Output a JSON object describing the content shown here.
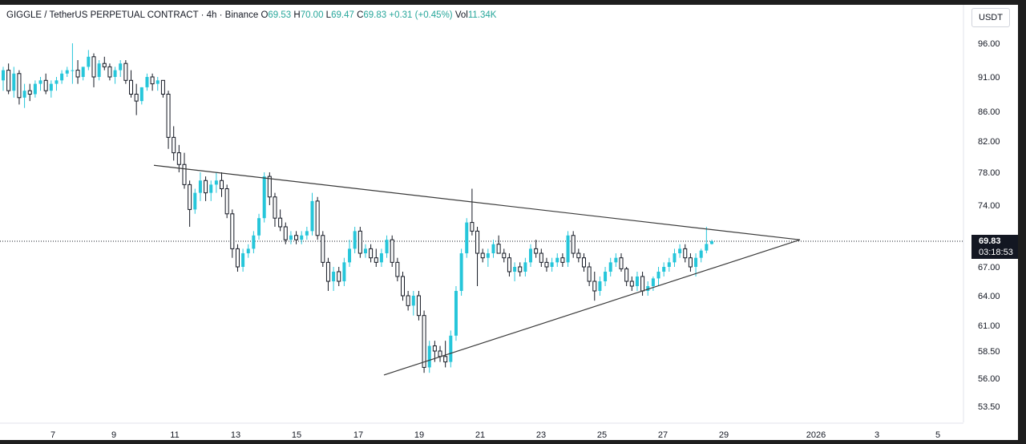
{
  "legend": {
    "symbol": "GIGGLE / TetherUS PERPETUAL CONTRACT · 4h · Binance",
    "o_label": "O",
    "o_value": "69.53",
    "h_label": "H",
    "h_value": "70.00",
    "l_label": "L",
    "l_value": "69.47",
    "c_label": "C",
    "c_value": "69.83",
    "change": "+0.31 (+0.45%)",
    "vol_label": "Vol",
    "vol_value": "11.34K"
  },
  "currency_label": "USDT",
  "current_price": {
    "price": "69.83",
    "countdown": "03:18:53"
  },
  "colors": {
    "up": "#26c6da",
    "down": "#ffffff",
    "down_outline": "#131722",
    "trendline": "#3a3a3a",
    "price_line": "#131722"
  },
  "chart_data": {
    "type": "candlestick",
    "y_ticks": [
      "96.00",
      "91.00",
      "86.00",
      "82.00",
      "78.00",
      "74.00",
      "67.00",
      "64.00",
      "61.00",
      "58.50",
      "56.00",
      "53.50"
    ],
    "x_ticks": [
      "7",
      "9",
      "11",
      "13",
      "15",
      "17",
      "19",
      "21",
      "23",
      "25",
      "27",
      "29",
      "2026",
      "3",
      "5"
    ],
    "current_price": 69.83,
    "trendlines": [
      {
        "name": "upper",
        "from": [
          "Dec 10",
          78.9
        ],
        "to": [
          "Dec 31",
          70.0
        ]
      },
      {
        "name": "lower",
        "from": [
          "Dec 18",
          56.3
        ],
        "to": [
          "Dec 31",
          70.0
        ]
      }
    ],
    "candles": [
      [
        90.5,
        92.5,
        89.0,
        92.0
      ],
      [
        92.0,
        93.0,
        88.5,
        89.0
      ],
      [
        89.0,
        92.5,
        88.0,
        91.5
      ],
      [
        91.5,
        92.0,
        87.0,
        88.0
      ],
      [
        88.0,
        90.0,
        86.5,
        89.0
      ],
      [
        89.0,
        90.0,
        87.5,
        88.5
      ],
      [
        88.5,
        90.5,
        88.0,
        90.0
      ],
      [
        90.0,
        91.0,
        89.0,
        90.5
      ],
      [
        90.5,
        91.5,
        88.5,
        89.0
      ],
      [
        89.0,
        90.5,
        88.0,
        90.0
      ],
      [
        90.0,
        91.0,
        89.0,
        90.5
      ],
      [
        90.5,
        92.0,
        90.0,
        91.5
      ],
      [
        91.5,
        92.5,
        91.0,
        92.0
      ],
      [
        92.0,
        96.0,
        90.0,
        92.0
      ],
      [
        92.0,
        93.5,
        90.0,
        91.0
      ],
      [
        91.0,
        92.5,
        90.5,
        92.5
      ],
      [
        92.5,
        95.0,
        92.0,
        94.0
      ],
      [
        94.0,
        94.5,
        89.5,
        91.0
      ],
      [
        91.0,
        93.5,
        90.5,
        93.0
      ],
      [
        93.0,
        94.0,
        92.0,
        92.5
      ],
      [
        92.5,
        93.0,
        90.5,
        91.0
      ],
      [
        91.0,
        92.5,
        90.0,
        92.0
      ],
      [
        92.0,
        93.5,
        91.0,
        93.0
      ],
      [
        93.0,
        93.5,
        90.0,
        90.5
      ],
      [
        90.5,
        92.0,
        88.0,
        88.5
      ],
      [
        88.5,
        90.0,
        85.5,
        87.5
      ],
      [
        87.5,
        89.5,
        87.0,
        89.5
      ],
      [
        89.5,
        91.5,
        89.0,
        91.0
      ],
      [
        91.0,
        91.5,
        89.0,
        90.0
      ],
      [
        90.0,
        91.0,
        89.0,
        90.5
      ],
      [
        90.5,
        90.5,
        88.0,
        88.5
      ],
      [
        88.5,
        89.0,
        81.0,
        82.5
      ],
      [
        82.5,
        84.0,
        79.5,
        80.5
      ],
      [
        80.5,
        81.5,
        78.0,
        79.0
      ],
      [
        79.0,
        80.5,
        76.0,
        76.5
      ],
      [
        76.5,
        77.0,
        71.5,
        73.5
      ],
      [
        73.5,
        76.0,
        73.0,
        75.5
      ],
      [
        75.5,
        78.0,
        74.5,
        77.0
      ],
      [
        77.0,
        77.5,
        74.5,
        75.5
      ],
      [
        75.5,
        77.0,
        74.5,
        76.5
      ],
      [
        76.5,
        78.0,
        75.5,
        77.0
      ],
      [
        77.0,
        78.0,
        75.0,
        76.0
      ],
      [
        76.0,
        76.5,
        72.5,
        73.0
      ],
      [
        73.0,
        73.5,
        68.0,
        69.0
      ],
      [
        69.0,
        69.5,
        66.5,
        67.0
      ],
      [
        67.0,
        69.0,
        66.5,
        68.5
      ],
      [
        68.5,
        69.5,
        68.0,
        69.0
      ],
      [
        69.0,
        71.0,
        68.5,
        70.5
      ],
      [
        70.5,
        73.0,
        70.0,
        72.5
      ],
      [
        72.5,
        78.0,
        72.0,
        77.5
      ],
      [
        77.5,
        78.0,
        74.0,
        75.0
      ],
      [
        75.0,
        75.5,
        71.5,
        72.5
      ],
      [
        72.5,
        73.5,
        71.0,
        71.5
      ],
      [
        71.5,
        72.0,
        69.5,
        70.0
      ],
      [
        70.0,
        71.0,
        69.5,
        70.5
      ],
      [
        70.5,
        71.0,
        69.5,
        70.0
      ],
      [
        70.0,
        71.0,
        69.5,
        70.5
      ],
      [
        70.5,
        71.5,
        70.0,
        71.0
      ],
      [
        71.0,
        75.5,
        70.5,
        74.5
      ],
      [
        74.5,
        75.0,
        70.0,
        70.5
      ],
      [
        70.5,
        71.0,
        67.0,
        67.5
      ],
      [
        67.5,
        68.0,
        64.5,
        65.5
      ],
      [
        65.5,
        67.0,
        64.5,
        66.5
      ],
      [
        66.5,
        67.0,
        65.0,
        65.5
      ],
      [
        65.5,
        68.0,
        65.0,
        67.5
      ],
      [
        67.5,
        70.0,
        67.0,
        69.0
      ],
      [
        69.0,
        71.5,
        68.5,
        71.0
      ],
      [
        71.0,
        71.5,
        68.0,
        68.5
      ],
      [
        68.5,
        69.5,
        68.0,
        69.0
      ],
      [
        69.0,
        69.5,
        67.5,
        68.0
      ],
      [
        68.0,
        69.0,
        67.0,
        67.5
      ],
      [
        67.5,
        69.0,
        67.0,
        68.5
      ],
      [
        68.5,
        70.5,
        68.0,
        70.0
      ],
      [
        70.0,
        70.5,
        67.0,
        67.5
      ],
      [
        67.5,
        68.0,
        65.5,
        66.0
      ],
      [
        66.0,
        66.5,
        63.5,
        64.0
      ],
      [
        64.0,
        64.5,
        62.5,
        63.0
      ],
      [
        63.0,
        64.5,
        62.0,
        64.0
      ],
      [
        64.0,
        64.5,
        61.5,
        62.0
      ],
      [
        62.0,
        62.5,
        56.5,
        57.0
      ],
      [
        57.0,
        59.5,
        56.5,
        59.0
      ],
      [
        59.0,
        59.5,
        57.5,
        58.5
      ],
      [
        58.5,
        59.0,
        57.5,
        58.0
      ],
      [
        58.0,
        59.5,
        57.0,
        57.5
      ],
      [
        57.5,
        60.5,
        57.0,
        60.0
      ],
      [
        60.0,
        65.0,
        59.5,
        64.5
      ],
      [
        64.5,
        69.0,
        64.0,
        68.5
      ],
      [
        68.5,
        72.5,
        68.0,
        72.0
      ],
      [
        72.0,
        76.0,
        70.5,
        71.0
      ],
      [
        71.0,
        71.5,
        65.0,
        68.5
      ],
      [
        68.5,
        69.0,
        67.5,
        68.0
      ],
      [
        68.0,
        69.0,
        67.0,
        68.5
      ],
      [
        68.5,
        70.0,
        68.0,
        69.5
      ],
      [
        69.5,
        70.5,
        68.5,
        68.5
      ],
      [
        68.5,
        69.0,
        67.5,
        68.0
      ],
      [
        68.0,
        68.5,
        66.0,
        66.5
      ],
      [
        66.5,
        67.5,
        65.5,
        67.0
      ],
      [
        67.0,
        67.5,
        66.0,
        66.5
      ],
      [
        66.5,
        68.0,
        66.0,
        67.5
      ],
      [
        67.5,
        69.5,
        67.0,
        69.0
      ],
      [
        69.0,
        70.0,
        68.0,
        68.5
      ],
      [
        68.5,
        69.0,
        67.0,
        67.5
      ],
      [
        67.5,
        68.0,
        66.5,
        67.0
      ],
      [
        67.0,
        68.0,
        66.5,
        67.5
      ],
      [
        67.5,
        68.5,
        67.0,
        68.0
      ],
      [
        68.0,
        68.5,
        67.0,
        67.5
      ],
      [
        67.5,
        71.0,
        67.0,
        70.5
      ],
      [
        70.5,
        71.0,
        68.0,
        68.5
      ],
      [
        68.5,
        69.0,
        67.5,
        68.0
      ],
      [
        68.0,
        68.5,
        66.5,
        67.0
      ],
      [
        67.0,
        67.5,
        65.0,
        65.5
      ],
      [
        65.5,
        66.5,
        63.5,
        64.5
      ],
      [
        64.5,
        66.0,
        64.0,
        65.5
      ],
      [
        65.5,
        67.0,
        65.0,
        66.5
      ],
      [
        66.5,
        68.0,
        66.0,
        67.5
      ],
      [
        67.5,
        68.5,
        67.0,
        68.0
      ],
      [
        68.0,
        68.5,
        66.5,
        66.8
      ],
      [
        66.8,
        67.0,
        65.0,
        65.5
      ],
      [
        65.5,
        66.0,
        64.5,
        65.0
      ],
      [
        65.0,
        66.5,
        64.5,
        66.0
      ],
      [
        66.0,
        66.5,
        64.0,
        64.5
      ],
      [
        64.5,
        65.5,
        64.0,
        65.0
      ],
      [
        65.0,
        66.0,
        64.5,
        65.8
      ],
      [
        65.8,
        67.0,
        65.0,
        66.5
      ],
      [
        66.5,
        67.5,
        66.0,
        67.0
      ],
      [
        67.0,
        68.0,
        66.5,
        67.5
      ],
      [
        67.5,
        69.0,
        67.0,
        68.5
      ],
      [
        68.5,
        69.5,
        68.0,
        69.0
      ],
      [
        69.0,
        69.5,
        67.5,
        68.0
      ],
      [
        68.0,
        68.5,
        66.5,
        67.0
      ],
      [
        67.0,
        68.5,
        66.0,
        68.0
      ],
      [
        68.0,
        69.0,
        67.5,
        68.8
      ],
      [
        68.8,
        71.5,
        68.5,
        69.53
      ],
      [
        69.53,
        70.0,
        69.47,
        69.83
      ]
    ]
  }
}
